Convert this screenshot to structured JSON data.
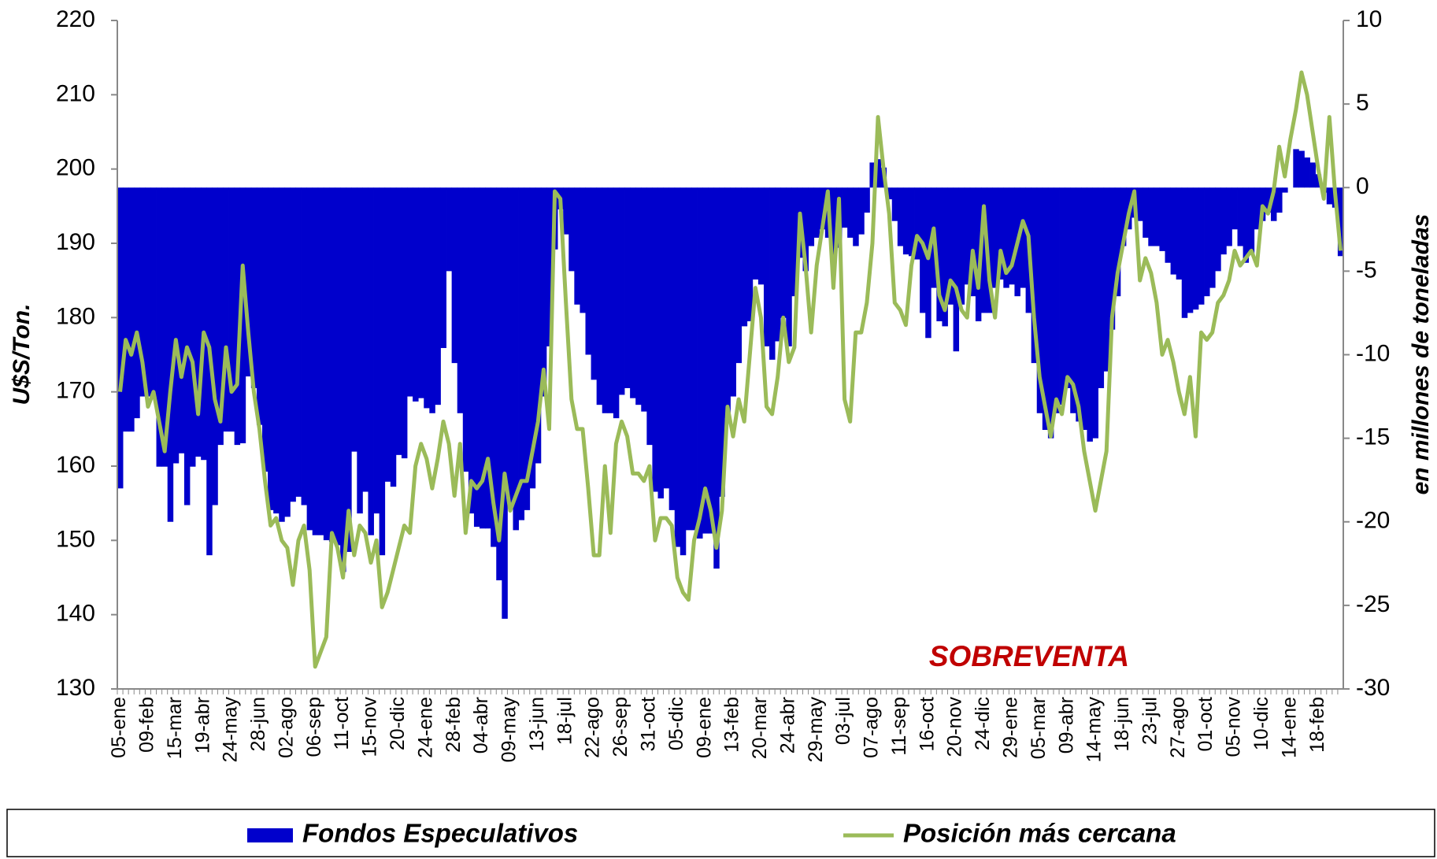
{
  "chart_data": {
    "type": "bar",
    "ylabel": "U$S/Ton.",
    "y2label": "en millones de toneladas",
    "annotation": "SOBREVENTA",
    "ylim": [
      130,
      220
    ],
    "yticks": [
      130,
      140,
      150,
      160,
      170,
      180,
      190,
      200,
      210,
      220
    ],
    "y2lim": [
      -30,
      10
    ],
    "y2ticks": [
      -30,
      -25,
      -20,
      -15,
      -10,
      -5,
      0,
      5,
      10
    ],
    "legend": "bottom",
    "categories": [
      "05-ene",
      null,
      null,
      null,
      null,
      "09-feb",
      null,
      null,
      null,
      null,
      "15-mar",
      null,
      null,
      null,
      null,
      "19-abr",
      null,
      null,
      null,
      null,
      "24-may",
      null,
      null,
      null,
      null,
      "28-jun",
      null,
      null,
      null,
      null,
      "02-ago",
      null,
      null,
      null,
      null,
      "06-sep",
      null,
      null,
      null,
      null,
      "11-oct",
      null,
      null,
      null,
      null,
      "15-nov",
      null,
      null,
      null,
      null,
      "20-dic",
      null,
      null,
      null,
      null,
      "24-ene",
      null,
      null,
      null,
      null,
      "28-feb",
      null,
      null,
      null,
      null,
      "04-abr",
      null,
      null,
      null,
      null,
      "09-may",
      null,
      null,
      null,
      null,
      "13-jun",
      null,
      null,
      null,
      null,
      "18-jul",
      null,
      null,
      null,
      null,
      "22-ago",
      null,
      null,
      null,
      null,
      "26-sep",
      null,
      null,
      null,
      null,
      "31-oct",
      null,
      null,
      null,
      null,
      "05-dic",
      null,
      null,
      null,
      null,
      "09-ene",
      null,
      null,
      null,
      null,
      "13-feb",
      null,
      null,
      null,
      null,
      "20-mar",
      null,
      null,
      null,
      null,
      "24-abr",
      null,
      null,
      null,
      null,
      "29-may",
      null,
      null,
      null,
      null,
      "03-jul",
      null,
      null,
      null,
      null,
      "07-ago",
      null,
      null,
      null,
      null,
      "11-sep",
      null,
      null,
      null,
      null,
      "16-oct",
      null,
      null,
      null,
      null,
      "20-nov",
      null,
      null,
      null,
      null,
      "24-dic",
      null,
      null,
      null,
      null,
      "29-ene",
      null,
      null,
      null,
      null,
      "05-mar",
      null,
      null,
      null,
      null,
      "09-abr",
      null,
      null,
      null,
      null,
      "14-may",
      null,
      null,
      null,
      null,
      "18-jun",
      null,
      null,
      null,
      null,
      "23-jul",
      null,
      null,
      null,
      null,
      "27-ago",
      null,
      null,
      null,
      null,
      "01-oct",
      null,
      null,
      null,
      null,
      "05-nov",
      null,
      null,
      null,
      null,
      "10-dic",
      null,
      null,
      null,
      null,
      "14-ene",
      null,
      null,
      null,
      null,
      "18-feb",
      null,
      null,
      null,
      null
    ],
    "series": [
      {
        "name": "Fondos Especulativos",
        "type": "bar",
        "axis": "y2",
        "color": "#0000cc",
        "values": [
          -18,
          -14.6,
          -14.6,
          -13.8,
          -12.5,
          -12.5,
          -12.5,
          -16.7,
          -16.7,
          -20,
          -16.5,
          -15.9,
          -19,
          -16.7,
          -16.1,
          -16.3,
          -22,
          -19,
          -15.4,
          -14.6,
          -14.6,
          -15.4,
          -15.3,
          -11.3,
          -12,
          -14.2,
          -17,
          -19.3,
          -19.5,
          -20,
          -19.7,
          -18.8,
          -18.5,
          -19,
          -20.5,
          -20.8,
          -20.8,
          -21.1,
          -21.2,
          -21.4,
          -23,
          -21.8,
          -15.8,
          -19.5,
          -18.2,
          -20.8,
          -19.5,
          -22,
          -17.6,
          -17.9,
          -16,
          -16.2,
          -12.5,
          -12.8,
          -12.6,
          -13.2,
          -13.5,
          -13,
          -9.6,
          -5,
          -10.5,
          -13.5,
          -17,
          -19.5,
          -20.3,
          -20.4,
          -20.4,
          -21.5,
          -23.5,
          -25.8,
          -19,
          -20.5,
          -19.9,
          -19.3,
          -18,
          -16.5,
          -12.5,
          -9.5,
          -3.7,
          -1.3,
          -2.8,
          -5,
          -7,
          -7.5,
          -10,
          -11.5,
          -13,
          -13.5,
          -13.5,
          -13.8,
          -12.4,
          -12,
          -12.6,
          -13,
          -13.4,
          -15.4,
          -18.2,
          -18.6,
          -18,
          -19.3,
          -21.5,
          -22,
          -20.5,
          -20.5,
          -21,
          -20.7,
          -20.7,
          -22.8,
          -18.5,
          -13.8,
          -12.5,
          -10.5,
          -8.3,
          -8,
          -5.5,
          -5.8,
          -9.5,
          -10.3,
          -9.2,
          -7.8,
          -9.5,
          -6.5,
          -4.2,
          -5,
          -3.5,
          -3,
          -2.5,
          -3,
          -4.5,
          -3.6,
          -2.4,
          -3,
          -3.5,
          -2.8,
          -1.5,
          1.5,
          1.7,
          1.2,
          -0.7,
          -2,
          -3.5,
          -4,
          -4.1,
          -4.3,
          -7.5,
          -9,
          -6,
          -8,
          -8.3,
          -7,
          -9.8,
          -7,
          -5.8,
          -6.5,
          -8,
          -7.5,
          -7.5,
          -6,
          -5.5,
          -6,
          -5.8,
          -6.5,
          -6,
          -7.5,
          -10.5,
          -13.5,
          -14.5,
          -15,
          -13.5,
          -13,
          -12,
          -13.5,
          -14,
          -14.5,
          -15.2,
          -15,
          -12,
          -11,
          -8.5,
          -6.5,
          -3.5,
          -2.5,
          -1.8,
          -2,
          -3,
          -3.5,
          -3.5,
          -3.8,
          -4.5,
          -5.2,
          -5.5,
          -7.8,
          -7.5,
          -7.3,
          -7,
          -6.5,
          -6,
          -5,
          -4,
          -3.5,
          -2.5,
          -3.5,
          -4.5,
          -4,
          -2.5,
          -2,
          -1.5,
          -2,
          -1.5,
          -0.3,
          0,
          2.3,
          2.2,
          1.8,
          1.5,
          0.8,
          -0.3,
          -1,
          -1.2,
          -4.1
        ]
      },
      {
        "name": "Posición más cercana",
        "type": "line",
        "color": "#9bbb59",
        "values": [
          170,
          177,
          175,
          178,
          174,
          168,
          170,
          166,
          162,
          170,
          177,
          172,
          176,
          174,
          167,
          178,
          176,
          169,
          166,
          176,
          170,
          171,
          187,
          178,
          170,
          165,
          158,
          152,
          153,
          150,
          149,
          144,
          150,
          152,
          146,
          133,
          135,
          137,
          151,
          149,
          145,
          154,
          148,
          152,
          151,
          147,
          150,
          141,
          143,
          146,
          149,
          152,
          151,
          160,
          163,
          161,
          157,
          161,
          166,
          163,
          156,
          163,
          151,
          158,
          157,
          158,
          161,
          155,
          150,
          159,
          154,
          156,
          158,
          158,
          162,
          166,
          173,
          165,
          197,
          196,
          182,
          169,
          165,
          165,
          157,
          148,
          148,
          160,
          151,
          163,
          166,
          164,
          159,
          159,
          158,
          160,
          150,
          153,
          153,
          152,
          145,
          143,
          142,
          150,
          153,
          157,
          154,
          149,
          154,
          168,
          164,
          169,
          166,
          175,
          184,
          180,
          168,
          167,
          172,
          180,
          174,
          176,
          194,
          187,
          178,
          187,
          192,
          197,
          184,
          196,
          169,
          166,
          178,
          178,
          182,
          190,
          207,
          200,
          194,
          182,
          181,
          179,
          187,
          191,
          190,
          188,
          192,
          183,
          181,
          185,
          184,
          181,
          180,
          189,
          184,
          195,
          185,
          180,
          189,
          186,
          187,
          190,
          193,
          191,
          180,
          172,
          168,
          164,
          169,
          167,
          172,
          171,
          168,
          162,
          158,
          154,
          158,
          162,
          180,
          186,
          190,
          194,
          197,
          185,
          188,
          186,
          182,
          175,
          177,
          174,
          170,
          167,
          172,
          164,
          178,
          177,
          178,
          182,
          183,
          185,
          189,
          187,
          188,
          189,
          187,
          195,
          194,
          197,
          203,
          199,
          204,
          208,
          213,
          210,
          205,
          200,
          196,
          207,
          197,
          189
        ]
      }
    ]
  }
}
